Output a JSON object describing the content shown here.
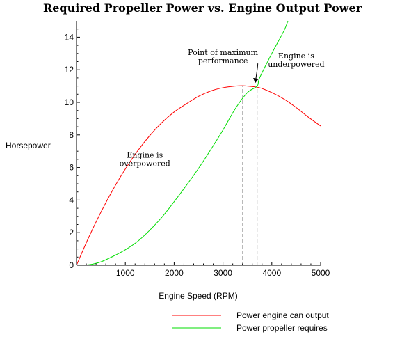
{
  "chart_data": {
    "type": "line",
    "title": "Required Propeller Power vs. Engine Output Power",
    "xlabel": "Engine Speed (RPM)",
    "ylabel": "Horsepower",
    "xlim": [
      0,
      5000
    ],
    "ylim": [
      0,
      15
    ],
    "x_ticks": [
      0,
      1000,
      2000,
      3000,
      4000,
      5000
    ],
    "x_tick_labels": [
      "",
      "1000",
      "2000",
      "3000",
      "4000",
      "5000"
    ],
    "y_ticks": [
      0,
      2,
      4,
      6,
      8,
      10,
      12,
      14
    ],
    "y_tick_labels": [
      "0",
      "2",
      "4",
      "6",
      "8",
      "10",
      "12",
      "14"
    ],
    "grid": false,
    "legend_position": "bottom",
    "series": [
      {
        "name": "Power engine can output",
        "color": "#ff0000",
        "x": [
          0,
          250,
          500,
          750,
          1000,
          1250,
          1500,
          1750,
          2000,
          2250,
          2500,
          2750,
          3000,
          3250,
          3400,
          3500,
          3750,
          4000,
          4250,
          4500,
          4750,
          5000
        ],
        "y": [
          0,
          1.71,
          3.26,
          4.66,
          5.91,
          7.01,
          7.96,
          8.76,
          9.41,
          9.91,
          10.37,
          10.7,
          10.9,
          11.0,
          11.02,
          11.0,
          10.9,
          10.6,
          10.2,
          9.68,
          9.09,
          8.55
        ]
      },
      {
        "name": "Power propeller requires",
        "color": "#00dd00",
        "x": [
          0,
          250,
          500,
          750,
          1000,
          1250,
          1500,
          1750,
          2000,
          2250,
          2500,
          2750,
          3000,
          3250,
          3500,
          3700,
          3750,
          4000,
          4250,
          4330
        ],
        "y": [
          0,
          0.03,
          0.21,
          0.55,
          0.95,
          1.46,
          2.15,
          2.95,
          3.9,
          4.9,
          5.95,
          7.1,
          8.3,
          9.6,
          10.6,
          11.0,
          11.5,
          13.0,
          14.4,
          15.0
        ]
      }
    ],
    "reference_lines": [
      {
        "x": 3400,
        "y_top": 11.02
      },
      {
        "x": 3700,
        "y_top": 10.9
      }
    ],
    "annotations": [
      {
        "lines": [
          "Point of maximum",
          "performance"
        ],
        "x": 3000,
        "y": 12.9,
        "anchor": "middle",
        "arrow_to": [
          3690,
          11.05
        ]
      },
      {
        "lines": [
          "Engine is",
          "underpowered"
        ],
        "x": 4500,
        "y": 12.7,
        "anchor": "middle"
      },
      {
        "lines": [
          "Engine is",
          "overpowered"
        ],
        "x": 1400,
        "y": 6.6,
        "anchor": "middle"
      }
    ]
  }
}
